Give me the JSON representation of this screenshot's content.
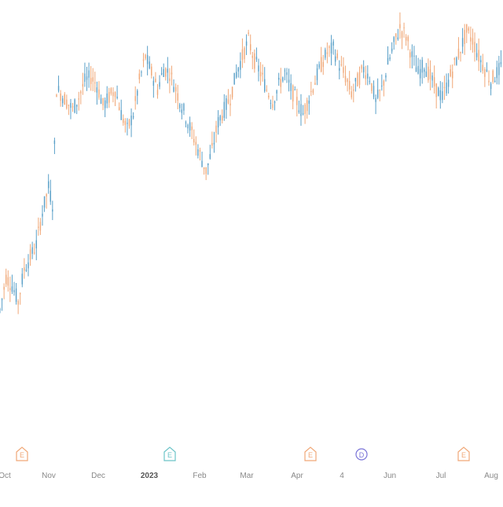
{
  "chart_data": {
    "type": "candlestick",
    "title": "",
    "xlabel": "",
    "ylabel": "",
    "grid": false,
    "colors": {
      "up": "#5aa0c8",
      "down": "#f0a878",
      "event_earnings": "#f0a878",
      "event_earnings_alt": "#6cc4c8",
      "event_dividend": "#7a74d8"
    },
    "x_tick_labels": [
      "Oct",
      "Nov",
      "Dec",
      "2023",
      "Feb",
      "Mar",
      "Apr",
      "4",
      "Jun",
      "Jul",
      "Aug"
    ],
    "events": [
      {
        "label": "E",
        "kind": "earnings",
        "near": "Oct"
      },
      {
        "label": "E",
        "kind": "earnings",
        "near": "Feb",
        "color": "#6cc4c8"
      },
      {
        "label": "E",
        "kind": "earnings",
        "near": "Apr"
      },
      {
        "label": "D",
        "kind": "dividend",
        "near": "4"
      },
      {
        "label": "E",
        "kind": "earnings",
        "near": "Jul"
      }
    ],
    "ylim": [
      0,
      100
    ],
    "note_y": "relative price level (no y-axis labels shown)",
    "ohlc_path": [
      [
        0,
        28
      ],
      [
        3,
        36
      ],
      [
        6,
        34
      ],
      [
        9,
        30
      ],
      [
        12,
        38
      ],
      [
        15,
        41
      ],
      [
        18,
        44
      ],
      [
        21,
        52
      ],
      [
        24,
        58
      ],
      [
        26,
        54
      ],
      [
        28,
        82
      ],
      [
        30,
        81
      ],
      [
        33,
        79
      ],
      [
        36,
        77
      ],
      [
        39,
        80
      ],
      [
        42,
        84
      ],
      [
        45,
        85
      ],
      [
        48,
        83
      ],
      [
        51,
        78
      ],
      [
        54,
        80
      ],
      [
        57,
        82
      ],
      [
        60,
        76
      ],
      [
        63,
        72
      ],
      [
        66,
        76
      ],
      [
        69,
        84
      ],
      [
        72,
        90
      ],
      [
        75,
        86
      ],
      [
        78,
        82
      ],
      [
        81,
        87
      ],
      [
        84,
        86
      ],
      [
        87,
        82
      ],
      [
        90,
        78
      ],
      [
        93,
        74
      ],
      [
        96,
        70
      ],
      [
        99,
        66
      ],
      [
        102,
        62
      ],
      [
        105,
        67
      ],
      [
        108,
        74
      ],
      [
        111,
        77
      ],
      [
        114,
        80
      ],
      [
        117,
        86
      ],
      [
        120,
        90
      ],
      [
        123,
        94
      ],
      [
        126,
        89
      ],
      [
        129,
        86
      ],
      [
        132,
        82
      ],
      [
        135,
        79
      ],
      [
        138,
        83
      ],
      [
        141,
        86
      ],
      [
        144,
        82
      ],
      [
        147,
        79
      ],
      [
        150,
        76
      ],
      [
        153,
        80
      ],
      [
        156,
        84
      ],
      [
        159,
        88
      ],
      [
        162,
        91
      ],
      [
        165,
        92
      ],
      [
        168,
        88
      ],
      [
        171,
        85
      ],
      [
        174,
        81
      ],
      [
        177,
        84
      ],
      [
        180,
        87
      ],
      [
        183,
        85
      ],
      [
        186,
        79
      ],
      [
        189,
        82
      ],
      [
        192,
        88
      ],
      [
        195,
        93
      ],
      [
        198,
        97
      ],
      [
        201,
        95
      ],
      [
        204,
        90
      ],
      [
        207,
        86
      ],
      [
        210,
        88
      ],
      [
        213,
        85
      ],
      [
        216,
        82
      ],
      [
        219,
        80
      ],
      [
        222,
        84
      ],
      [
        225,
        88
      ],
      [
        228,
        92
      ],
      [
        231,
        96
      ],
      [
        234,
        94
      ],
      [
        237,
        90
      ],
      [
        240,
        87
      ],
      [
        243,
        84
      ],
      [
        246,
        86
      ],
      [
        249,
        88
      ]
    ]
  }
}
